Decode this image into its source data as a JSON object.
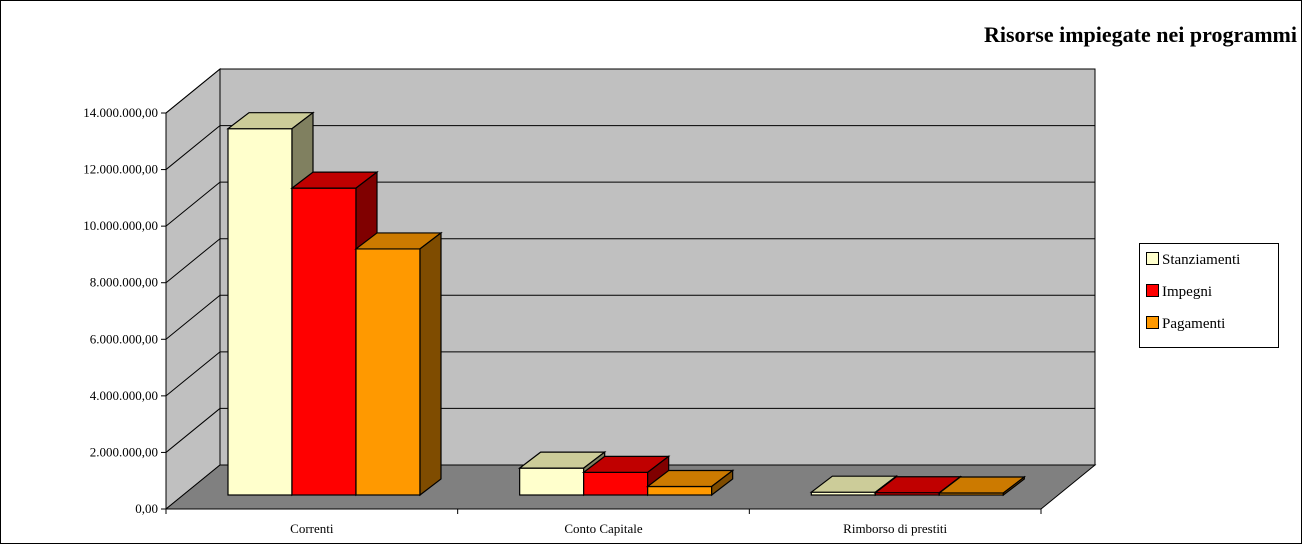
{
  "chart_data": {
    "type": "bar",
    "title": "Risorse impiegate nei programmi",
    "categories": [
      "Correnti",
      "Conto Capitale",
      "Rimborso di prestiti"
    ],
    "series": [
      {
        "name": "Stanziamenti",
        "values": [
          12950000,
          950000,
          100000
        ]
      },
      {
        "name": "Impegni",
        "values": [
          10850000,
          800000,
          80000
        ]
      },
      {
        "name": "Pagamenti",
        "values": [
          8700000,
          300000,
          70000
        ]
      }
    ],
    "ylim": [
      0,
      14000000
    ],
    "yticks": [
      0,
      2000000,
      4000000,
      6000000,
      8000000,
      10000000,
      12000000,
      14000000
    ],
    "ytick_labels": [
      "0,00",
      "2.000.000,00",
      "4.000.000,00",
      "6.000.000,00",
      "8.000.000,00",
      "10.000.000,00",
      "12.000.000,00",
      "14.000.000,00"
    ],
    "grid": true,
    "legend_position": "right",
    "style": "3d-clustered-column"
  },
  "colors": {
    "walls": "#c0c0c0",
    "floor": "#808080",
    "series": [
      "#ffffcc",
      "#ff0000",
      "#ff9900"
    ],
    "series_top": [
      "#cccc99",
      "#c00000",
      "#cc7a00"
    ],
    "series_side": [
      "#808060",
      "#800000",
      "#7f4c00"
    ]
  }
}
